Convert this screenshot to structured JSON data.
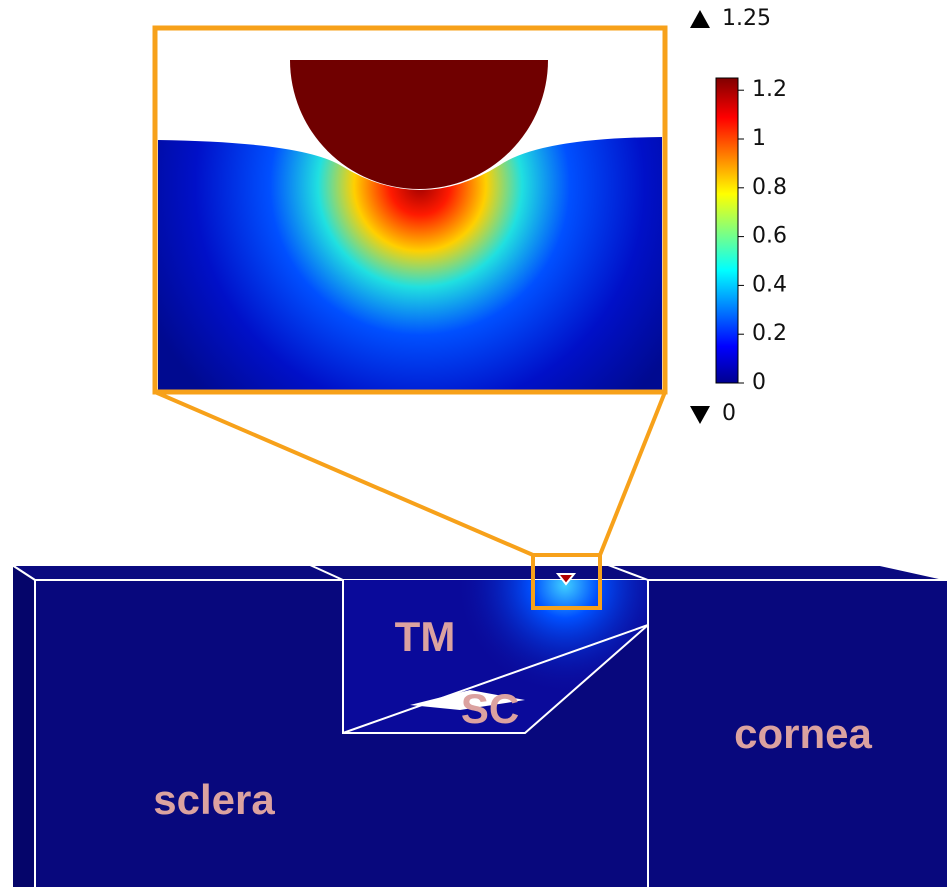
{
  "colorbar": {
    "max_label": 1.25,
    "min_label": 0,
    "lim": [
      0,
      1.25
    ],
    "ticks": [
      0,
      0.2,
      0.4,
      0.6,
      0.8,
      1,
      1.2
    ]
  },
  "labels": {
    "tm": "TM",
    "sc": "SC",
    "cornea": "cornea",
    "sclera": "sclera"
  }
}
